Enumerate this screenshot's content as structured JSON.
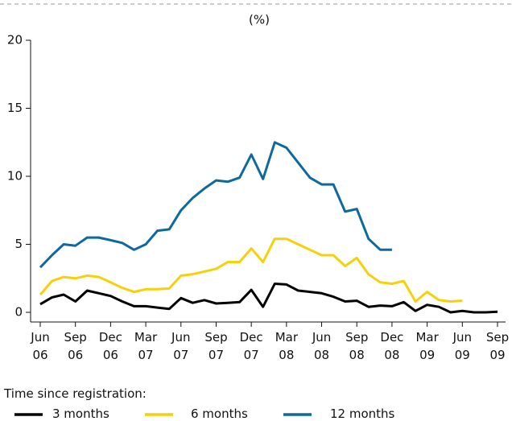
{
  "chart_data": {
    "type": "line",
    "unit_label": "(%)",
    "categories": [
      "Jun 06",
      null,
      null,
      "Sep 06",
      null,
      null,
      "Dec 06",
      null,
      null,
      "Mar 07",
      null,
      null,
      "Jun 07",
      null,
      null,
      "Sep 07",
      null,
      null,
      "Dec 07",
      null,
      null,
      "Mar 08",
      null,
      null,
      "Jun 08",
      null,
      null,
      "Sep 08",
      null,
      null,
      "Dec 08",
      null,
      null,
      "Mar 09",
      null,
      null,
      "Jun 09",
      null,
      null,
      "Sep 09"
    ],
    "series": [
      {
        "name": "3 months",
        "color": "#000000",
        "values": [
          0.6,
          1.1,
          1.3,
          0.8,
          1.6,
          1.4,
          1.2,
          0.8,
          0.45,
          0.45,
          0.35,
          0.25,
          1.05,
          0.7,
          0.9,
          0.65,
          0.7,
          0.75,
          1.65,
          0.4,
          2.1,
          2.05,
          1.6,
          1.5,
          1.4,
          1.15,
          0.8,
          0.85,
          0.4,
          0.5,
          0.45,
          0.75,
          0.1,
          0.55,
          0.4,
          0.0,
          0.1,
          0.0,
          0.0,
          0.05
        ]
      },
      {
        "name": "6 months",
        "color": "#f5d10a",
        "values": [
          1.3,
          2.3,
          2.6,
          2.5,
          2.7,
          2.6,
          2.2,
          1.8,
          1.5,
          1.7,
          1.7,
          1.75,
          2.7,
          2.8,
          3.0,
          3.2,
          3.7,
          3.7,
          4.7,
          3.7,
          5.4,
          5.4,
          5.0,
          4.6,
          4.2,
          4.2,
          3.4,
          4.0,
          2.8,
          2.2,
          2.1,
          2.3,
          0.8,
          1.5,
          0.9,
          0.8,
          0.85,
          null,
          null,
          null
        ]
      },
      {
        "name": "12 months",
        "color": "#0e6a9e",
        "values": [
          3.3,
          4.2,
          5.0,
          4.9,
          5.5,
          5.5,
          5.3,
          5.1,
          4.6,
          5.0,
          6.0,
          6.1,
          7.5,
          8.4,
          9.1,
          9.7,
          9.6,
          9.9,
          11.6,
          9.8,
          12.5,
          12.1,
          11.0,
          9.9,
          9.4,
          9.4,
          7.4,
          7.6,
          5.4,
          4.6,
          4.6,
          null,
          null,
          null,
          null,
          null,
          null,
          null,
          null,
          null
        ]
      }
    ],
    "ylim": [
      0,
      20
    ],
    "yticks": [
      0,
      5,
      10,
      15,
      20
    ],
    "legend_title": "Time since registration:"
  }
}
